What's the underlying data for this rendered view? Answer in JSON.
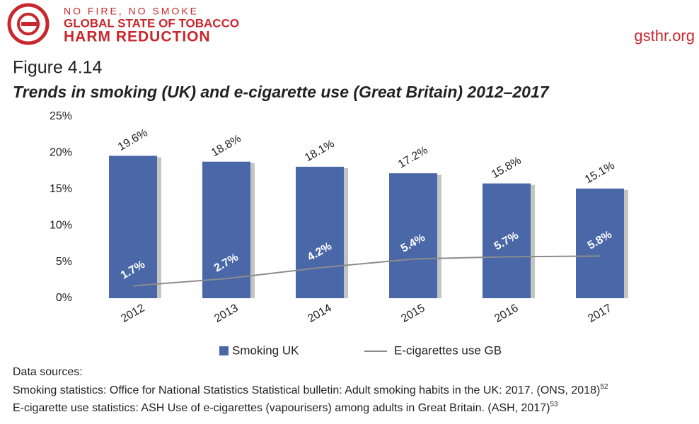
{
  "header": {
    "tagline": "NO FIRE, NO SMOKE",
    "org_line1": "GLOBAL STATE OF TOBACCO",
    "org_line2": "HARM REDUCTION",
    "url": "gsthr.org"
  },
  "chart_data": {
    "type": "bar",
    "figure": "Figure 4.14",
    "title": "Trends in smoking (UK) and e-cigarette use (Great Britain) 2012–2017",
    "categories": [
      "2012",
      "2013",
      "2014",
      "2015",
      "2016",
      "2017"
    ],
    "series": [
      {
        "name": "Smoking UK",
        "type": "bar",
        "color": "#4a67a8",
        "values": [
          19.6,
          18.8,
          18.1,
          17.2,
          15.8,
          15.1
        ],
        "value_labels": [
          "19.6%",
          "18.8%",
          "18.1%",
          "17.2%",
          "15.8%",
          "15.1%"
        ]
      },
      {
        "name": "E-cigarettes use GB",
        "type": "line",
        "color": "#8c8c8c",
        "values": [
          1.7,
          2.7,
          4.2,
          5.4,
          5.7,
          5.8
        ],
        "value_labels": [
          "1.7%",
          "2.7%",
          "4.2%",
          "5.4%",
          "5.7%",
          "5.8%"
        ]
      }
    ],
    "ylim": [
      0,
      25
    ],
    "yticks": [
      {
        "value": 0,
        "label": "0%"
      },
      {
        "value": 5,
        "label": "5%"
      },
      {
        "value": 10,
        "label": "10%"
      },
      {
        "value": 15,
        "label": "15%"
      },
      {
        "value": 20,
        "label": "20%"
      },
      {
        "value": 25,
        "label": "25%"
      }
    ],
    "legend": "bottom"
  },
  "sources": {
    "heading": "Data sources:",
    "lines": [
      {
        "text": "Smoking statistics: Office for National Statistics Statistical bulletin: Adult smoking habits in the UK: 2017. (ONS, 2018)",
        "ref": "52"
      },
      {
        "text": "E-cigarette use statistics: ASH Use of e-cigarettes (vapourisers) among adults in Great Britain. (ASH, 2017)",
        "ref": "53"
      }
    ]
  }
}
